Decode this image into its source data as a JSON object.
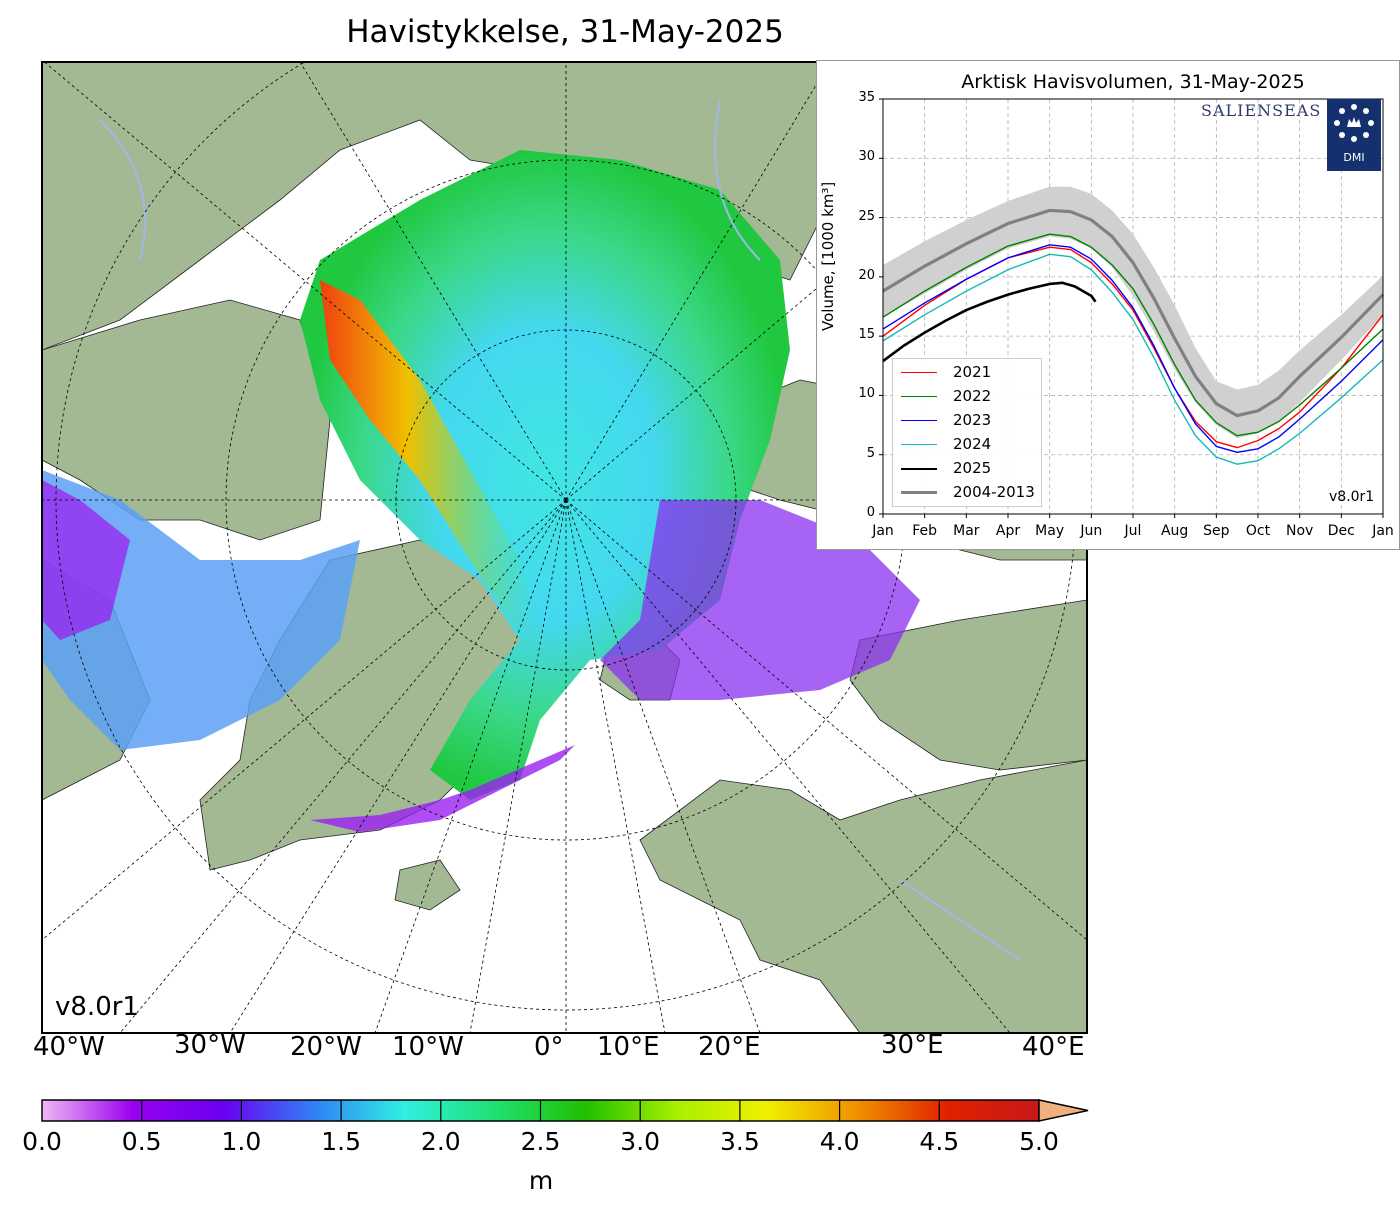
{
  "map": {
    "title": "Havistykkelse, 31-May-2025",
    "version": "v8.0r1",
    "lon_labels": [
      "40°W",
      "30°W",
      "20°W",
      "10°W",
      "0°",
      "10°E",
      "20°E",
      "30°E",
      "40°E"
    ],
    "colors": {
      "land": "#a3b994",
      "water": "#ffffff",
      "rivers": "#9fb8e6"
    }
  },
  "colorbar": {
    "ticks": [
      "0.0",
      "0.5",
      "1.0",
      "1.5",
      "2.0",
      "2.5",
      "3.0",
      "3.5",
      "4.0",
      "4.5",
      "5.0"
    ],
    "unit": "m",
    "extend": "max",
    "colors": [
      "#f0b8f5",
      "#9a00f0",
      "#6a00f0",
      "#3080f5",
      "#30f0e0",
      "#20e070",
      "#20c000",
      "#a8f000",
      "#f0f000",
      "#f09000",
      "#e02000",
      "#c81818",
      "#f0b080"
    ]
  },
  "chart_data": {
    "type": "line",
    "title": "Arktisk Havisvolumen, 31-May-2025",
    "xlabel": "",
    "ylabel": "Volume, [1000 km³]",
    "ylim": [
      0,
      35
    ],
    "yticks": [
      "0",
      "5",
      "10",
      "15",
      "20",
      "25",
      "30",
      "35"
    ],
    "x_months": [
      "Jan",
      "Feb",
      "Mar",
      "Apr",
      "May",
      "Jun",
      "Jul",
      "Aug",
      "Sep",
      "Oct",
      "Nov",
      "Dec",
      "Jan"
    ],
    "grid": true,
    "legend_position": "bottom-left",
    "brand_text": "SALIENSEAS",
    "logo_text": "DMI",
    "version": "v8.0r1",
    "x_month_positions": [
      0,
      1,
      2,
      3,
      4,
      5,
      6,
      7,
      8,
      9,
      10,
      11,
      12
    ],
    "series": [
      {
        "name": "2021",
        "color": "#ff0000",
        "width": 1.4,
        "values": [
          [
            0,
            15.0
          ],
          [
            1,
            17.6
          ],
          [
            2,
            19.8
          ],
          [
            3,
            21.6
          ],
          [
            4,
            22.5
          ],
          [
            4.5,
            22.3
          ],
          [
            5,
            21.2
          ],
          [
            5.5,
            19.4
          ],
          [
            6,
            17.2
          ],
          [
            6.5,
            14.0
          ],
          [
            7,
            10.6
          ],
          [
            7.5,
            7.8
          ],
          [
            8,
            6.1
          ],
          [
            8.5,
            5.6
          ],
          [
            9,
            6.2
          ],
          [
            9.5,
            7.2
          ],
          [
            10,
            8.6
          ],
          [
            11,
            12.3
          ],
          [
            12,
            16.8
          ]
        ]
      },
      {
        "name": "2022",
        "color": "#008000",
        "width": 1.4,
        "values": [
          [
            0,
            16.6
          ],
          [
            1,
            18.8
          ],
          [
            2,
            20.8
          ],
          [
            3,
            22.6
          ],
          [
            4,
            23.6
          ],
          [
            4.5,
            23.4
          ],
          [
            5,
            22.5
          ],
          [
            5.5,
            21.0
          ],
          [
            6,
            19.0
          ],
          [
            6.5,
            16.0
          ],
          [
            7,
            12.6
          ],
          [
            7.5,
            9.6
          ],
          [
            8,
            7.7
          ],
          [
            8.5,
            6.6
          ],
          [
            9,
            6.9
          ],
          [
            9.5,
            7.8
          ],
          [
            10,
            9.2
          ],
          [
            11,
            12.3
          ],
          [
            12,
            15.6
          ]
        ]
      },
      {
        "name": "2023",
        "color": "#0000ff",
        "width": 1.4,
        "values": [
          [
            0,
            15.6
          ],
          [
            1,
            17.8
          ],
          [
            2,
            19.8
          ],
          [
            3,
            21.6
          ],
          [
            4,
            22.7
          ],
          [
            4.5,
            22.5
          ],
          [
            5,
            21.5
          ],
          [
            5.5,
            19.7
          ],
          [
            6,
            17.4
          ],
          [
            6.5,
            14.2
          ],
          [
            7,
            10.6
          ],
          [
            7.5,
            7.6
          ],
          [
            8,
            5.7
          ],
          [
            8.5,
            5.2
          ],
          [
            9,
            5.5
          ],
          [
            9.5,
            6.5
          ],
          [
            10,
            8.0
          ],
          [
            11,
            11.2
          ],
          [
            12,
            14.7
          ]
        ]
      },
      {
        "name": "2024",
        "color": "#18b8b8",
        "width": 1.4,
        "values": [
          [
            0,
            14.6
          ],
          [
            1,
            16.8
          ],
          [
            2,
            18.8
          ],
          [
            3,
            20.6
          ],
          [
            4,
            21.9
          ],
          [
            4.5,
            21.7
          ],
          [
            5,
            20.6
          ],
          [
            5.5,
            18.7
          ],
          [
            6,
            16.4
          ],
          [
            6.5,
            13.2
          ],
          [
            7,
            9.6
          ],
          [
            7.5,
            6.6
          ],
          [
            8,
            4.8
          ],
          [
            8.5,
            4.2
          ],
          [
            9,
            4.5
          ],
          [
            9.5,
            5.5
          ],
          [
            10,
            6.8
          ],
          [
            11,
            9.8
          ],
          [
            12,
            13.0
          ]
        ]
      },
      {
        "name": "2025",
        "color": "#000000",
        "width": 2.6,
        "values": [
          [
            0,
            12.9
          ],
          [
            0.5,
            14.2
          ],
          [
            1,
            15.3
          ],
          [
            1.5,
            16.3
          ],
          [
            2,
            17.2
          ],
          [
            2.5,
            17.9
          ],
          [
            3,
            18.5
          ],
          [
            3.5,
            19.0
          ],
          [
            4,
            19.4
          ],
          [
            4.3,
            19.5
          ],
          [
            4.6,
            19.2
          ],
          [
            5,
            18.4
          ],
          [
            5.1,
            17.9
          ]
        ]
      },
      {
        "name": "2004-2013",
        "color": "#808080",
        "width": 3.2,
        "values": [
          [
            0,
            18.8
          ],
          [
            1,
            20.9
          ],
          [
            2,
            22.8
          ],
          [
            3,
            24.5
          ],
          [
            4,
            25.6
          ],
          [
            4.5,
            25.5
          ],
          [
            5,
            24.8
          ],
          [
            5.5,
            23.4
          ],
          [
            6,
            21.2
          ],
          [
            6.5,
            18.2
          ],
          [
            7,
            14.8
          ],
          [
            7.5,
            11.6
          ],
          [
            8,
            9.3
          ],
          [
            8.5,
            8.3
          ],
          [
            9,
            8.7
          ],
          [
            9.5,
            9.8
          ],
          [
            10,
            11.6
          ],
          [
            11,
            14.9
          ],
          [
            12,
            18.5
          ]
        ]
      }
    ],
    "band_2004_2013": {
      "color": "#d0d0d0",
      "upper": [
        [
          0,
          21.0
        ],
        [
          1,
          23.0
        ],
        [
          2,
          24.8
        ],
        [
          3,
          26.4
        ],
        [
          4,
          27.6
        ],
        [
          4.5,
          27.6
        ],
        [
          5,
          27.0
        ],
        [
          5.5,
          25.6
        ],
        [
          6,
          23.6
        ],
        [
          6.5,
          20.8
        ],
        [
          7,
          17.6
        ],
        [
          7.5,
          14.0
        ],
        [
          8,
          11.2
        ],
        [
          8.5,
          10.5
        ],
        [
          9,
          10.9
        ],
        [
          9.5,
          12.1
        ],
        [
          10,
          13.8
        ],
        [
          11,
          16.8
        ],
        [
          12,
          20.1
        ]
      ],
      "lower": [
        [
          0,
          16.6
        ],
        [
          1,
          18.6
        ],
        [
          2,
          20.6
        ],
        [
          3,
          22.4
        ],
        [
          4,
          23.4
        ],
        [
          4.5,
          23.2
        ],
        [
          5,
          22.4
        ],
        [
          5.5,
          20.8
        ],
        [
          6,
          18.4
        ],
        [
          6.5,
          15.4
        ],
        [
          7,
          12.2
        ],
        [
          7.5,
          9.4
        ],
        [
          8,
          7.5
        ],
        [
          8.5,
          6.4
        ],
        [
          9,
          6.8
        ],
        [
          9.5,
          7.8
        ],
        [
          10,
          9.4
        ],
        [
          11,
          13.0
        ],
        [
          12,
          16.8
        ]
      ]
    }
  }
}
